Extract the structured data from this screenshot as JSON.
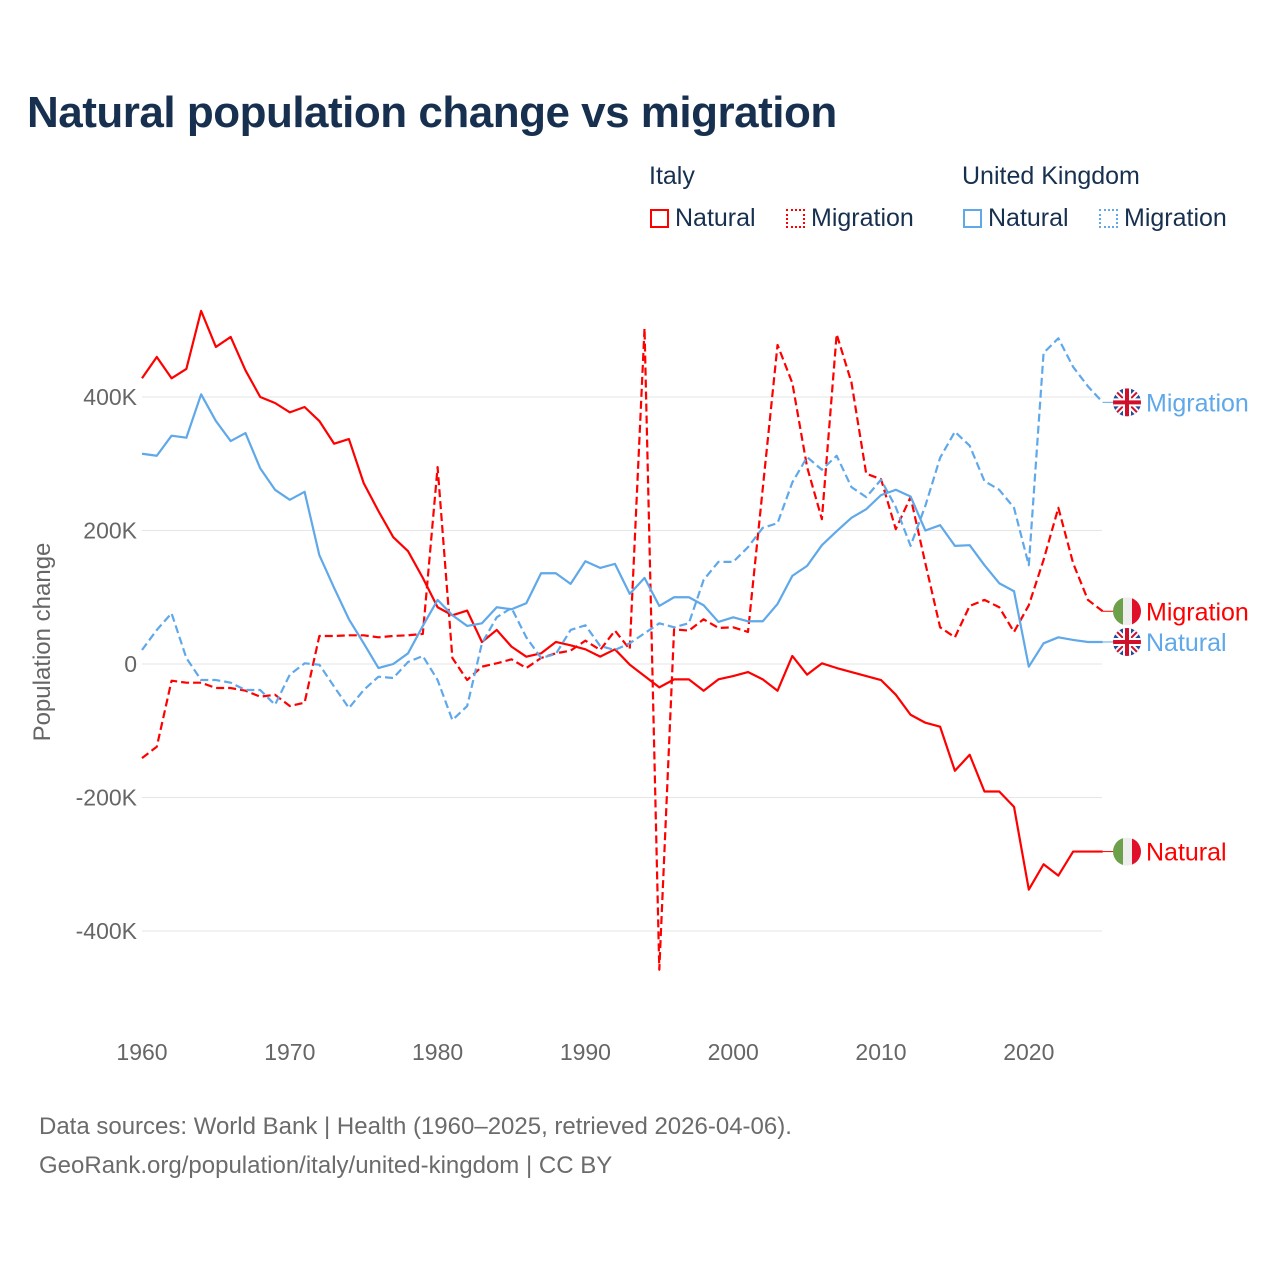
{
  "title": "Natural population change vs migration",
  "legend": {
    "groups": [
      {
        "name": "Italy",
        "items": [
          "Natural",
          "Migration"
        ]
      },
      {
        "name": "United Kingdom",
        "items": [
          "Natural",
          "Migration"
        ]
      }
    ]
  },
  "footer": {
    "line1": "Data sources: World Bank | Health (1960–2025, retrieved 2026-04-06).",
    "line2": "GeoRank.org/population/italy/united-kingdom | CC BY"
  },
  "colors": {
    "italy": "#ff0000",
    "uk": "#5fa8ea",
    "text": "#17304f",
    "grid": "#e6e6e6",
    "tick": "#666666"
  },
  "chart_data": {
    "type": "line",
    "title": "Natural population change vs migration",
    "ylabel": "Population change",
    "xlabel": "",
    "xlim": [
      1960,
      2025
    ],
    "ylim": [
      -480,
      560
    ],
    "y_unit": "thousands",
    "grid": true,
    "legend_position": "top-right",
    "xticks": [
      1960,
      1970,
      1980,
      1990,
      2000,
      2010,
      2020
    ],
    "xtick_labels": [
      "1960",
      "1970",
      "1980",
      "1990",
      "2000",
      "2010",
      "2020"
    ],
    "yticks": [
      -400,
      -200,
      0,
      200,
      400
    ],
    "ytick_labels": [
      "-400K",
      "-200K",
      "0",
      "200K",
      "400K"
    ],
    "x_start": 1960,
    "series": [
      {
        "name": "Italy Natural",
        "country": "Italy",
        "label": "Natural",
        "color": "#ff0000",
        "dashed": false,
        "flag": "italy",
        "values": [
          428,
          460,
          428,
          442,
          529,
          475,
          490,
          440,
          400,
          391,
          377,
          385,
          364,
          330,
          337,
          271,
          229,
          190,
          169,
          129,
          85,
          73,
          80,
          33,
          51,
          26,
          11,
          16,
          33,
          28,
          22,
          11,
          22,
          -1,
          -18,
          -35,
          -23,
          -23,
          -40,
          -23,
          -18,
          -12,
          -23,
          -40,
          12,
          -16,
          1,
          -6,
          -12,
          -18,
          -24,
          -46,
          -76,
          -88,
          -94,
          -160,
          -136,
          -191,
          -191,
          -214,
          -338,
          -300,
          -317,
          -281,
          -281,
          -281
        ]
      },
      {
        "name": "Italy Migration",
        "country": "Italy",
        "label": "Migration",
        "color": "#ff0000",
        "dashed": true,
        "flag": "italy",
        "values": [
          -141,
          -124,
          -25,
          -28,
          -28,
          -36,
          -36,
          -40,
          -49,
          -46,
          -63,
          -58,
          42,
          42,
          43,
          43,
          40,
          42,
          43,
          45,
          295,
          9,
          -24,
          -4,
          1,
          7,
          -6,
          9,
          16,
          20,
          35,
          21,
          50,
          22,
          503,
          -458,
          52,
          50,
          67,
          54,
          55,
          48,
          263,
          478,
          421,
          295,
          217,
          494,
          422,
          285,
          277,
          202,
          250,
          151,
          55,
          40,
          87,
          96,
          85,
          48,
          88,
          156,
          234,
          151,
          96,
          79
        ]
      },
      {
        "name": "United Kingdom Natural",
        "country": "United Kingdom",
        "label": "Natural",
        "color": "#5fa8ea",
        "dashed": false,
        "flag": "uk",
        "values": [
          315,
          312,
          342,
          339,
          404,
          364,
          334,
          346,
          293,
          261,
          246,
          258,
          163,
          114,
          67,
          31,
          -6,
          0,
          16,
          57,
          96,
          73,
          57,
          61,
          85,
          82,
          91,
          136,
          136,
          120,
          154,
          144,
          150,
          105,
          129,
          87,
          100,
          100,
          88,
          63,
          70,
          64,
          64,
          90,
          132,
          147,
          178,
          199,
          219,
          232,
          253,
          261,
          251,
          200,
          208,
          177,
          178,
          148,
          121,
          109,
          -4,
          31,
          40,
          36,
          33,
          33
        ]
      },
      {
        "name": "United Kingdom Migration",
        "country": "United Kingdom",
        "label": "Migration",
        "color": "#5fa8ea",
        "dashed": true,
        "flag": "uk",
        "values": [
          21,
          51,
          76,
          9,
          -24,
          -24,
          -28,
          -39,
          -39,
          -61,
          -16,
          1,
          -1,
          -34,
          -66,
          -39,
          -19,
          -21,
          3,
          12,
          -24,
          -84,
          -63,
          31,
          70,
          84,
          40,
          9,
          15,
          51,
          58,
          27,
          21,
          31,
          46,
          61,
          55,
          61,
          126,
          153,
          153,
          175,
          204,
          211,
          272,
          310,
          291,
          312,
          265,
          250,
          276,
          235,
          177,
          237,
          309,
          348,
          327,
          274,
          261,
          234,
          148,
          466,
          488,
          445,
          416,
          392
        ]
      }
    ]
  }
}
